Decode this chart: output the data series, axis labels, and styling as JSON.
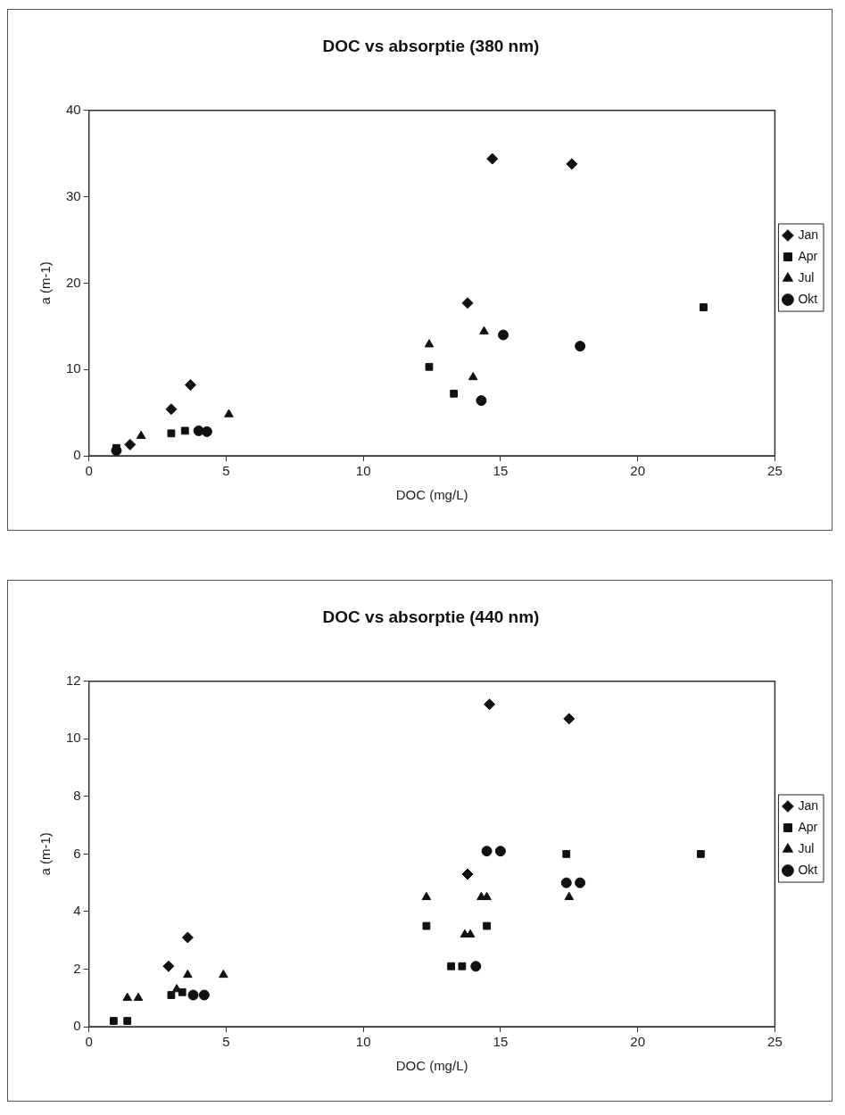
{
  "chart_data": [
    {
      "type": "scatter",
      "title": "DOC vs absorptie (380 nm)",
      "xlabel": "DOC (mg/L)",
      "ylabel": "a (m-1)",
      "xlim": [
        0,
        25
      ],
      "xticks": [
        0,
        5,
        10,
        15,
        20,
        25
      ],
      "ylim": [
        0,
        40
      ],
      "yticks": [
        0,
        10,
        20,
        30,
        40
      ],
      "grid": false,
      "legend": "right",
      "series": [
        {
          "name": "Jan",
          "color": "#111111",
          "marker": "diamond",
          "x": [
            1.5,
            3.0,
            3.7,
            13.8,
            14.7,
            17.6
          ],
          "values": [
            1.3,
            5.4,
            8.2,
            17.7,
            34.4,
            33.8
          ]
        },
        {
          "name": "Apr",
          "color": "#111111",
          "marker": "square",
          "x": [
            1.0,
            3.0,
            3.5,
            12.4,
            13.3,
            22.4
          ],
          "values": [
            0.9,
            2.6,
            2.9,
            10.3,
            7.2,
            17.2
          ]
        },
        {
          "name": "Jul",
          "color": "#111111",
          "marker": "triangle",
          "x": [
            1.9,
            5.1,
            12.4,
            14.0,
            14.4
          ],
          "values": [
            2.3,
            4.8,
            12.9,
            9.1,
            14.4
          ]
        },
        {
          "name": "Okt",
          "color": "#111111",
          "marker": "circle",
          "x": [
            1.0,
            4.0,
            4.3,
            14.3,
            15.1,
            17.9
          ],
          "values": [
            0.6,
            2.9,
            2.8,
            6.4,
            14.0,
            12.7
          ]
        }
      ]
    },
    {
      "type": "scatter",
      "title": "DOC vs absorptie (440 nm)",
      "xlabel": "DOC (mg/L)",
      "ylabel": "a (m-1)",
      "xlim": [
        0,
        25
      ],
      "xticks": [
        0,
        5,
        10,
        15,
        20,
        25
      ],
      "ylim": [
        0,
        12
      ],
      "yticks": [
        0,
        2,
        4,
        6,
        8,
        10,
        12
      ],
      "grid": false,
      "legend": "right",
      "series": [
        {
          "name": "Jan",
          "color": "#111111",
          "marker": "diamond",
          "x": [
            2.9,
            3.6,
            13.8,
            14.6,
            17.5
          ],
          "values": [
            2.1,
            3.1,
            5.3,
            11.2,
            10.7
          ]
        },
        {
          "name": "Apr",
          "color": "#111111",
          "marker": "square",
          "x": [
            0.9,
            1.4,
            3.0,
            3.4,
            12.3,
            13.2,
            13.6,
            14.5,
            17.4,
            22.3
          ],
          "values": [
            0.2,
            0.2,
            1.1,
            1.2,
            3.5,
            2.1,
            2.1,
            3.5,
            6.0,
            6.0
          ]
        },
        {
          "name": "Jul",
          "color": "#111111",
          "marker": "triangle",
          "x": [
            1.4,
            1.8,
            3.2,
            3.6,
            4.9,
            12.3,
            13.7,
            13.9,
            14.3,
            14.5,
            17.5
          ],
          "values": [
            1.0,
            1.0,
            1.3,
            1.8,
            1.8,
            4.5,
            3.2,
            3.2,
            4.5,
            4.5,
            4.5
          ]
        },
        {
          "name": "Okt",
          "color": "#111111",
          "marker": "circle",
          "x": [
            3.8,
            4.2,
            14.1,
            14.5,
            15.0,
            17.4,
            17.9
          ],
          "values": [
            1.1,
            1.1,
            2.1,
            6.1,
            6.1,
            5.0,
            5.0
          ]
        }
      ]
    }
  ]
}
